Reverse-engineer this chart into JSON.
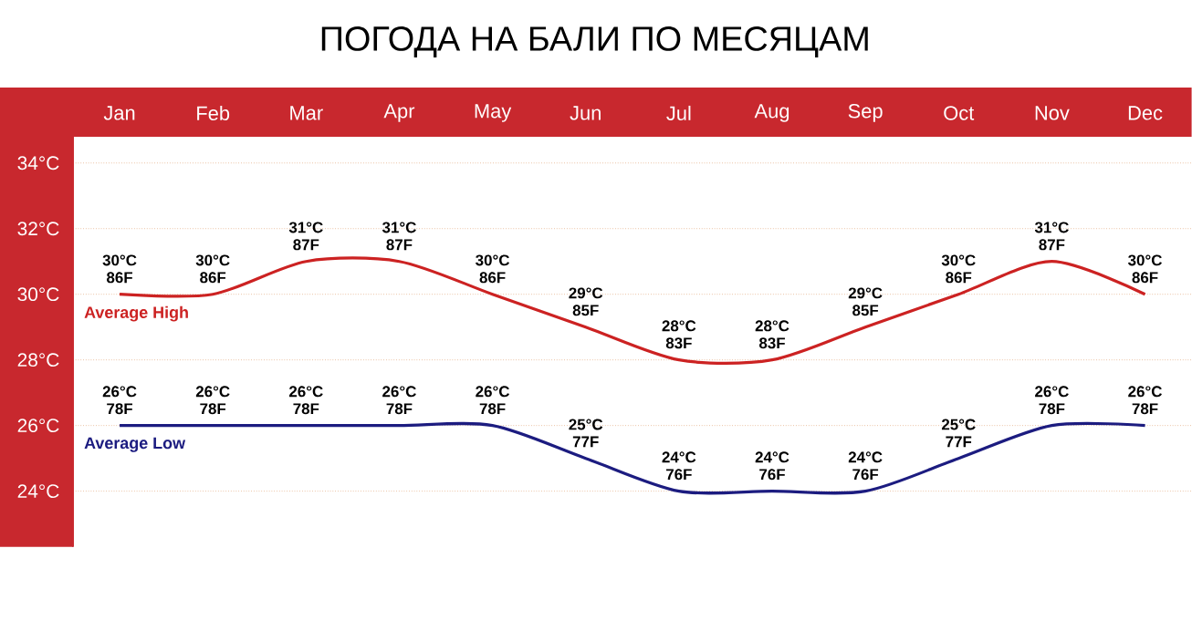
{
  "chart_data": {
    "type": "line",
    "title": "ПОГОДА НА БАЛИ ПО МЕСЯЦАМ",
    "categories": [
      "Jan",
      "Feb",
      "Mar",
      "Apr",
      "May",
      "Jun",
      "Jul",
      "Aug",
      "Sep",
      "Oct",
      "Nov",
      "Dec"
    ],
    "series": [
      {
        "name": "Average High",
        "color": "#cc2222",
        "values": [
          30,
          30,
          31,
          31,
          30,
          29,
          28,
          28,
          29,
          30,
          31,
          30
        ],
        "value_labels": [
          "30°C 86F",
          "30°C 86F",
          "31°C 87F",
          "31°C 87F",
          "30°C 86F",
          "29°C 85F",
          "28°C 83F",
          "28°C 83F",
          "29°C 85F",
          "30°C 86F",
          "31°C 87F",
          "30°C 86F"
        ]
      },
      {
        "name": "Average Low",
        "color": "#1c1c80",
        "values": [
          26,
          26,
          26,
          26,
          26,
          25,
          24,
          24,
          24,
          25,
          26,
          26
        ],
        "value_labels": [
          "26°C 78F",
          "26°C 78F",
          "26°C 78F",
          "26°C 78F",
          "26°C 78F",
          "25°C 77F",
          "24°C 76F",
          "24°C 76F",
          "24°C 76F",
          "25°C 77F",
          "26°C 78F",
          "26°C 78F"
        ]
      }
    ],
    "ylim": [
      22.3,
      34.8
    ],
    "yticks": [
      {
        "value": 24,
        "label": "24°C"
      },
      {
        "value": 26,
        "label": "26°C"
      },
      {
        "value": 28,
        "label": "28°C"
      },
      {
        "value": 30,
        "label": "30°C"
      },
      {
        "value": 32,
        "label": "32°C"
      },
      {
        "value": 34,
        "label": "34°C"
      }
    ],
    "grid": "y"
  }
}
